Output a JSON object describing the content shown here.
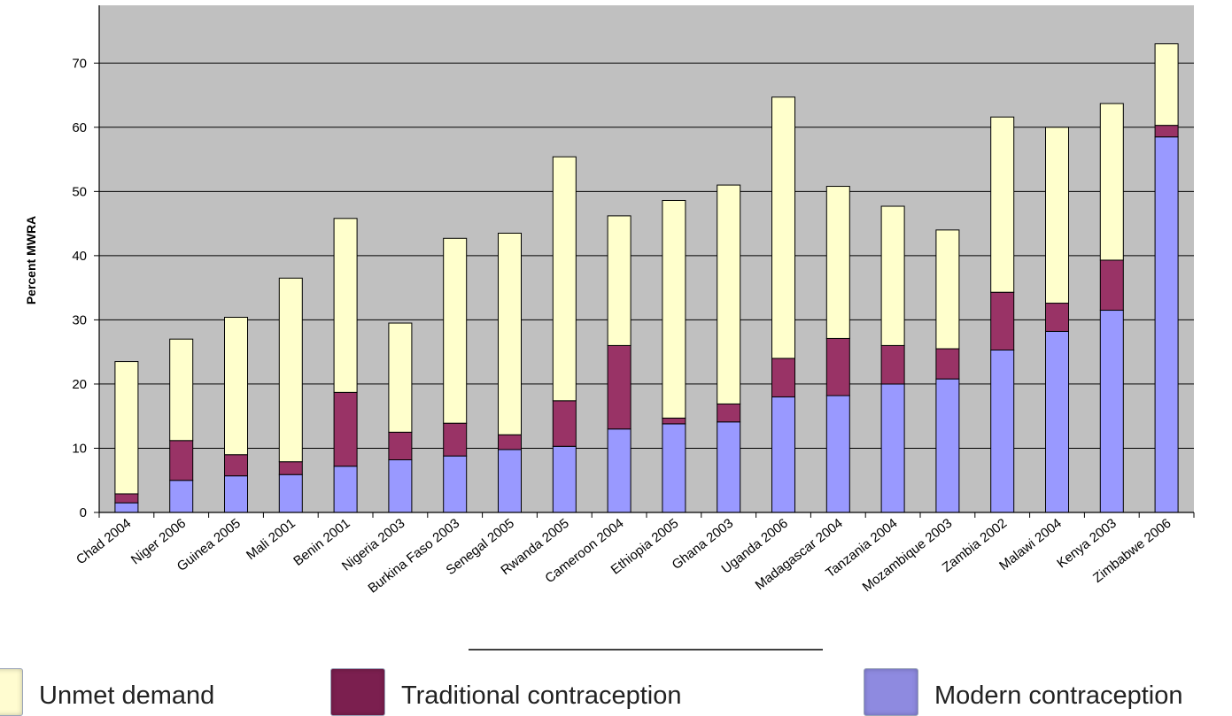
{
  "chart_data": {
    "type": "bar",
    "stacked": true,
    "ylabel": "Percent MWRA",
    "xlabel": "",
    "ylim": [
      0,
      79
    ],
    "yticks": [
      0,
      10,
      20,
      30,
      40,
      50,
      60,
      70
    ],
    "grid": true,
    "legend_position": "bottom",
    "categories": [
      "Chad 2004",
      "Niger 2006",
      "Guinea 2005",
      "Mali 2001",
      "Benin 2001",
      "Nigeria 2003",
      "Burkina Faso 2003",
      "Senegal 2005",
      "Rwanda 2005",
      "Cameroon 2004",
      "Ethiopia 2005",
      "Ghana 2003",
      "Uganda 2006",
      "Madagascar 2004",
      "Tanzania 2004",
      "Mozambique 2003",
      "Zambia 2002",
      "Malawi 2004",
      "Kenya 2003",
      "Zimbabwe 2006"
    ],
    "series": [
      {
        "name": "Modern contraception",
        "color": "#9999ff",
        "values": [
          1.5,
          5.0,
          5.7,
          5.9,
          7.2,
          8.2,
          8.8,
          9.8,
          10.3,
          13.0,
          13.8,
          14.1,
          18.0,
          18.2,
          20.0,
          20.8,
          25.3,
          28.2,
          31.5,
          58.5
        ]
      },
      {
        "name": "Traditional contraception",
        "color": "#993366",
        "values": [
          1.4,
          6.2,
          3.3,
          2.0,
          11.5,
          4.3,
          5.1,
          2.3,
          7.1,
          13.0,
          0.9,
          2.8,
          6.0,
          8.9,
          6.0,
          4.7,
          9.0,
          4.4,
          7.8,
          1.8
        ]
      },
      {
        "name": "Unmet demand",
        "color": "#ffffcc",
        "values": [
          20.6,
          15.8,
          21.4,
          28.6,
          27.1,
          17.0,
          28.8,
          31.4,
          38.0,
          20.2,
          33.9,
          34.1,
          40.7,
          23.7,
          21.7,
          18.5,
          27.3,
          27.4,
          24.4,
          12.7
        ]
      }
    ]
  },
  "legend": {
    "items": [
      {
        "label": "Unmet demand",
        "color": "#fffcd0"
      },
      {
        "label": "Traditional contraception",
        "color": "#7b1f4f"
      },
      {
        "label": "Modern contraception",
        "color": "#8e8ae0"
      }
    ]
  },
  "colors": {
    "plot_background": "#c0c0c0",
    "gridline": "#000000"
  }
}
